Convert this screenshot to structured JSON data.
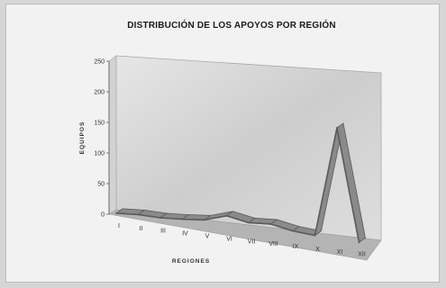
{
  "chart_data": {
    "type": "line",
    "title": "DISTRIBUCIÓN DE LOS APOYOS POR REGIÓN",
    "xlabel": "REGIONES",
    "ylabel": "EQUIPOS",
    "categories": [
      "I",
      "II",
      "III",
      "IV",
      "V",
      "VI",
      "VII",
      "VIII",
      "IX",
      "X",
      "XI",
      "XII"
    ],
    "series": [
      {
        "values": [
          3,
          5,
          4,
          6,
          9,
          20,
          13,
          15,
          8,
          5,
          185,
          2
        ]
      }
    ],
    "ylim": [
      0,
      250
    ],
    "yticks": [
      0,
      50,
      100,
      150,
      200,
      250
    ],
    "three_d": true,
    "grid": false,
    "legend": "none",
    "colors": {
      "line": "#8a8a8a",
      "line_side": "#5a5a5a",
      "floor": "#b4b4b4",
      "wall": "#cfcfcf"
    }
  }
}
